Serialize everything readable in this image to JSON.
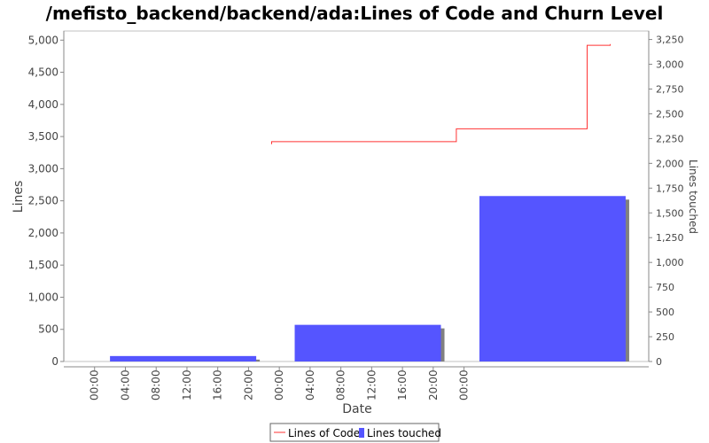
{
  "chart_data": {
    "type": "bar+line",
    "title": "/mefisto_backend/backend/ada:Lines of Code and Churn Level",
    "xlabel": "Date",
    "ylabel_left": "Lines",
    "ylabel_right": "Lines touched",
    "ylim_left": [
      0,
      5100
    ],
    "ylim_right": [
      0,
      3300
    ],
    "yticks_left": [
      0,
      500,
      1000,
      1500,
      2000,
      2500,
      3000,
      3500,
      4000,
      4500,
      5000
    ],
    "yticks_right": [
      0,
      250,
      500,
      750,
      1000,
      1250,
      1500,
      1750,
      2000,
      2250,
      2500,
      2750,
      3000,
      3250
    ],
    "x_tick_labels": [
      "00:00",
      "04:00",
      "08:00",
      "12:00",
      "16:00",
      "20:00",
      "00:00",
      "04:00",
      "08:00",
      "12:00",
      "16:00",
      "20:00",
      "00:00"
    ],
    "xlim_hours": [
      -4,
      72
    ],
    "grid": false,
    "legend_position": "bottom",
    "series": [
      {
        "name": "Lines of Code",
        "kind": "step-line",
        "color": "#ff3333",
        "points": [
          {
            "hour": 23,
            "value": 3380
          },
          {
            "hour": 23,
            "value": 3420
          },
          {
            "hour": 47,
            "value": 3420
          },
          {
            "hour": 47,
            "value": 3620
          },
          {
            "hour": 64,
            "value": 3620
          },
          {
            "hour": 64,
            "value": 4920
          },
          {
            "hour": 67,
            "value": 4920
          },
          {
            "hour": 67,
            "value": 4940
          }
        ]
      },
      {
        "name": "Lines touched",
        "kind": "bar",
        "color": "#5555ff",
        "shadow_color": "#808080",
        "axis": "right",
        "bars": [
          {
            "start_hour": 2,
            "end_hour": 21,
            "value": 55
          },
          {
            "start_hour": 26,
            "end_hour": 45,
            "value": 370
          },
          {
            "start_hour": 50,
            "end_hour": 69,
            "value": 1670
          }
        ]
      }
    ]
  }
}
